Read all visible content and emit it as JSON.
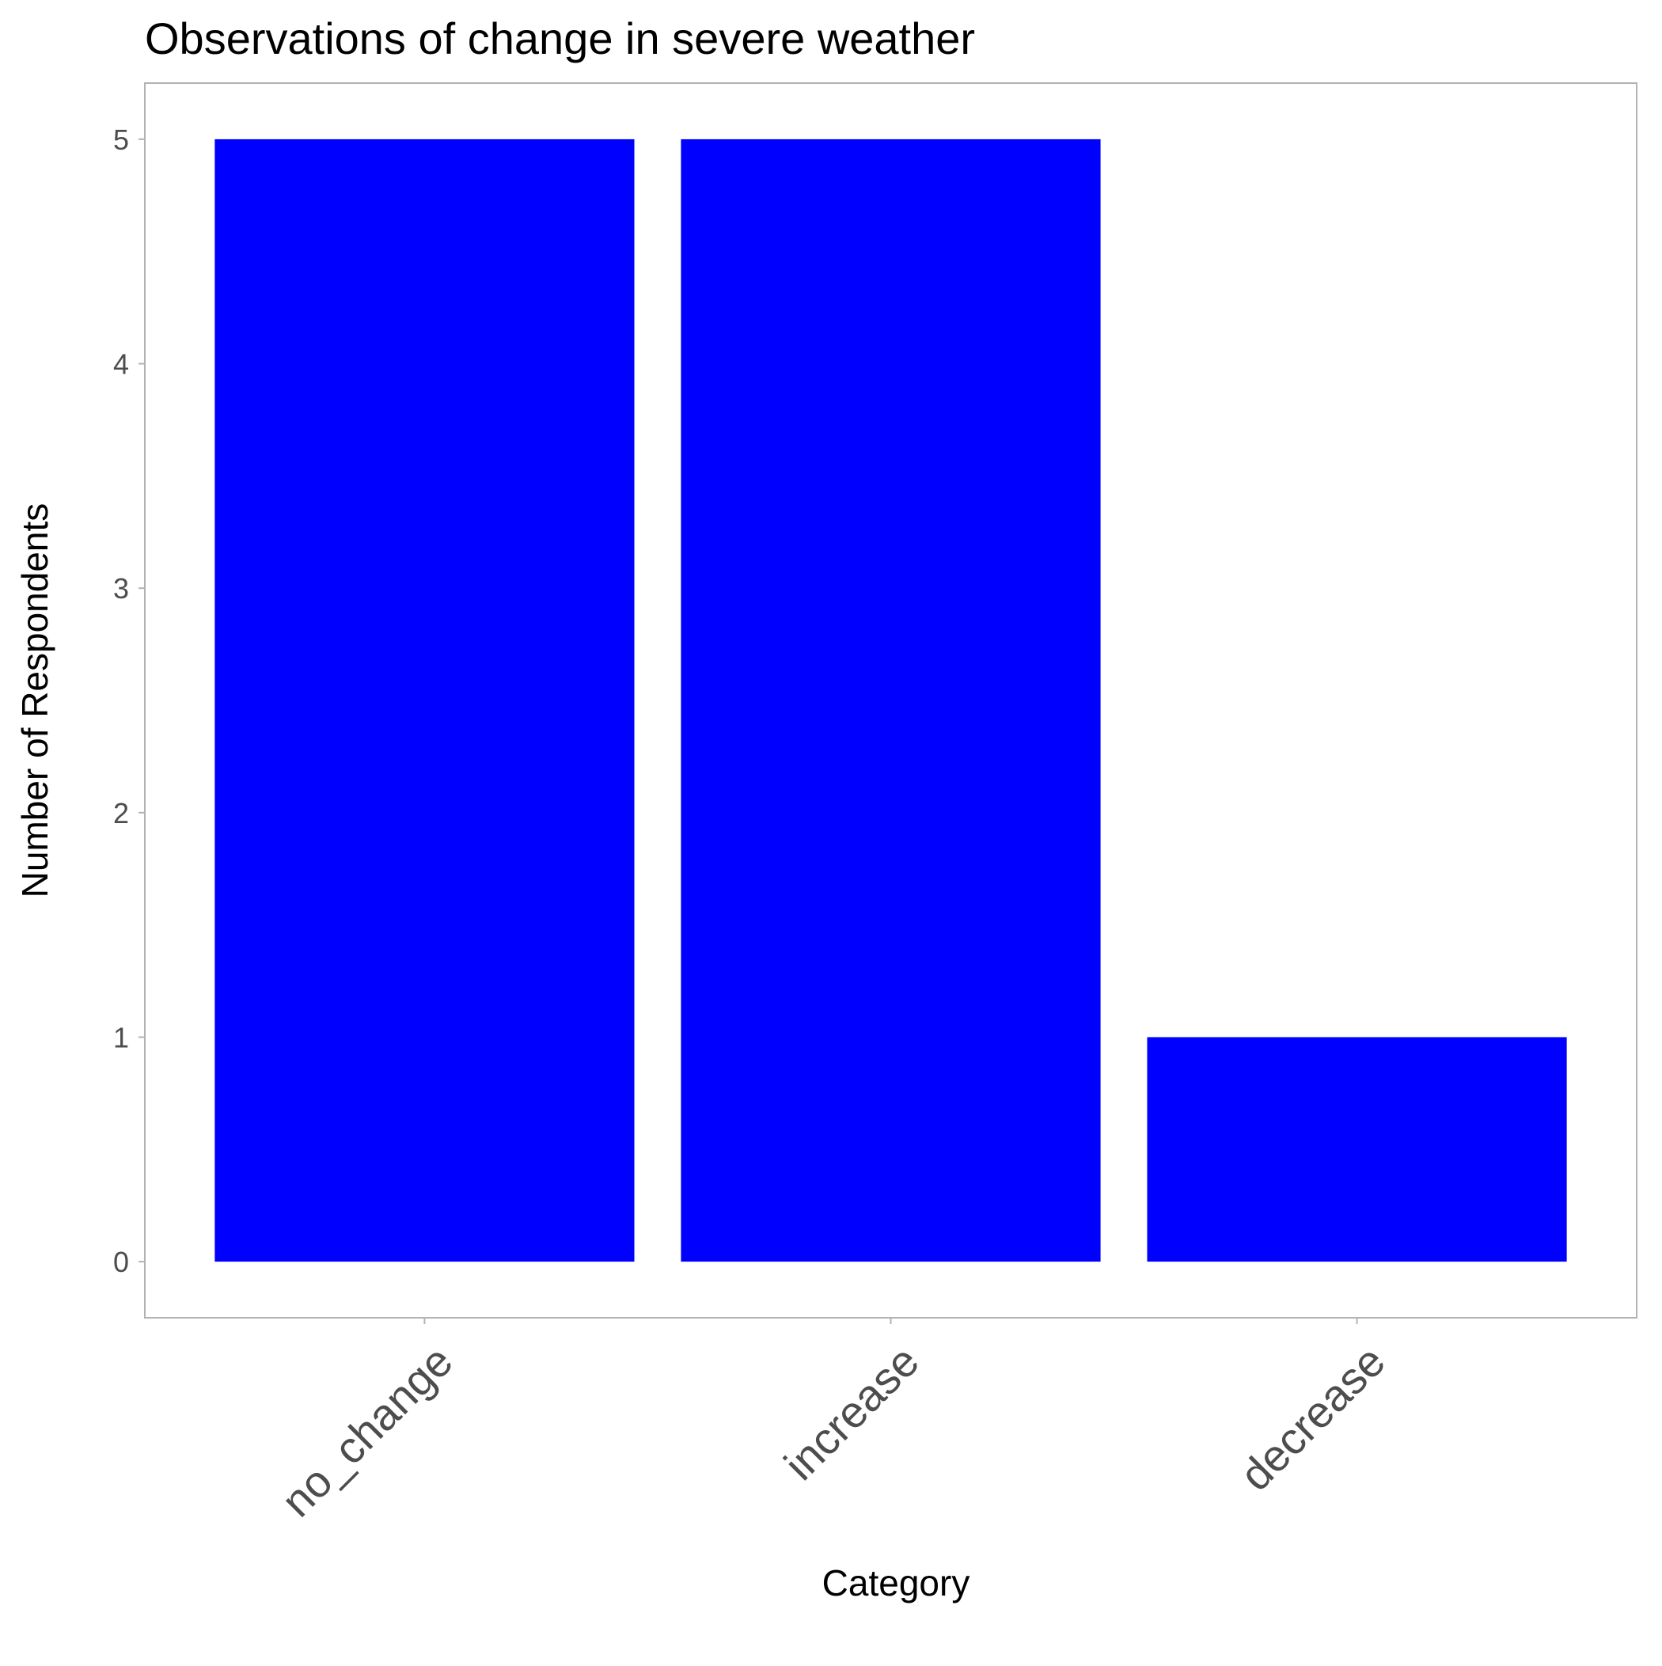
{
  "chart_data": {
    "type": "bar",
    "title": "Observations of change in severe weather",
    "xlabel": "Category",
    "ylabel": "Number of Respondents",
    "categories": [
      "no_change",
      "increase",
      "decrease"
    ],
    "values": [
      5,
      5,
      1
    ],
    "yticks": [
      0,
      1,
      2,
      3,
      4,
      5
    ],
    "ylim": [
      -0.25,
      5.25
    ],
    "bar_color": "#0000ff",
    "panel_border_color": "#b3b3b3",
    "tick_color": "#b3b3b3",
    "grid": false,
    "legend": "none"
  }
}
